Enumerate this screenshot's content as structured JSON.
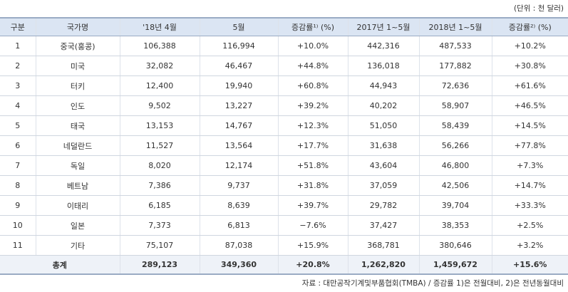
{
  "unit_note": "(단위 : 천 달러)",
  "table": {
    "header": [
      "구분",
      "국가명",
      "'18년 4월",
      "5월",
      "증감률¹⁾ (%)",
      "2017년 1~5월",
      "2018년 1~5월",
      "증감률²⁾ (%)"
    ],
    "rows": [
      [
        "1",
        "중국(홍콩)",
        "106,388",
        "116,994",
        "+10.0%",
        "442,316",
        "487,533",
        "+10.2%"
      ],
      [
        "2",
        "미국",
        "32,082",
        "46,467",
        "+44.8%",
        "136,018",
        "177,882",
        "+30.8%"
      ],
      [
        "3",
        "터키",
        "12,400",
        "19,940",
        "+60.8%",
        "44,943",
        "72,636",
        "+61.6%"
      ],
      [
        "4",
        "인도",
        "9,502",
        "13,227",
        "+39.2%",
        "40,202",
        "58,907",
        "+46.5%"
      ],
      [
        "5",
        "태국",
        "13,153",
        "14,767",
        "+12.3%",
        "51,050",
        "58,439",
        "+14.5%"
      ],
      [
        "6",
        "네덜란드",
        "11,527",
        "13,564",
        "+17.7%",
        "31,638",
        "56,266",
        "+77.8%"
      ],
      [
        "7",
        "독일",
        "8,020",
        "12,174",
        "+51.8%",
        "43,604",
        "46,800",
        "+7.3%"
      ],
      [
        "8",
        "베트남",
        "7,386",
        "9,737",
        "+31.8%",
        "37,059",
        "42,506",
        "+14.7%"
      ],
      [
        "9",
        "이태리",
        "6,185",
        "8,639",
        "+39.7%",
        "29,782",
        "39,704",
        "+33.3%"
      ],
      [
        "10",
        "일본",
        "7,373",
        "6,813",
        "−7.6%",
        "37,427",
        "38,353",
        "+2.5%"
      ],
      [
        "11",
        "기타",
        "75,107",
        "87,038",
        "+15.9%",
        "368,781",
        "380,646",
        "+3.2%"
      ]
    ],
    "total": [
      "총계",
      "289,123",
      "349,360",
      "+20.8%",
      "1,262,820",
      "1,459,672",
      "+15.6%"
    ]
  },
  "source": "자료 : 대만공작기계및부품협회(TMBA) / 증감률 1)은 전월대비, 2)은 전년동월대비"
}
